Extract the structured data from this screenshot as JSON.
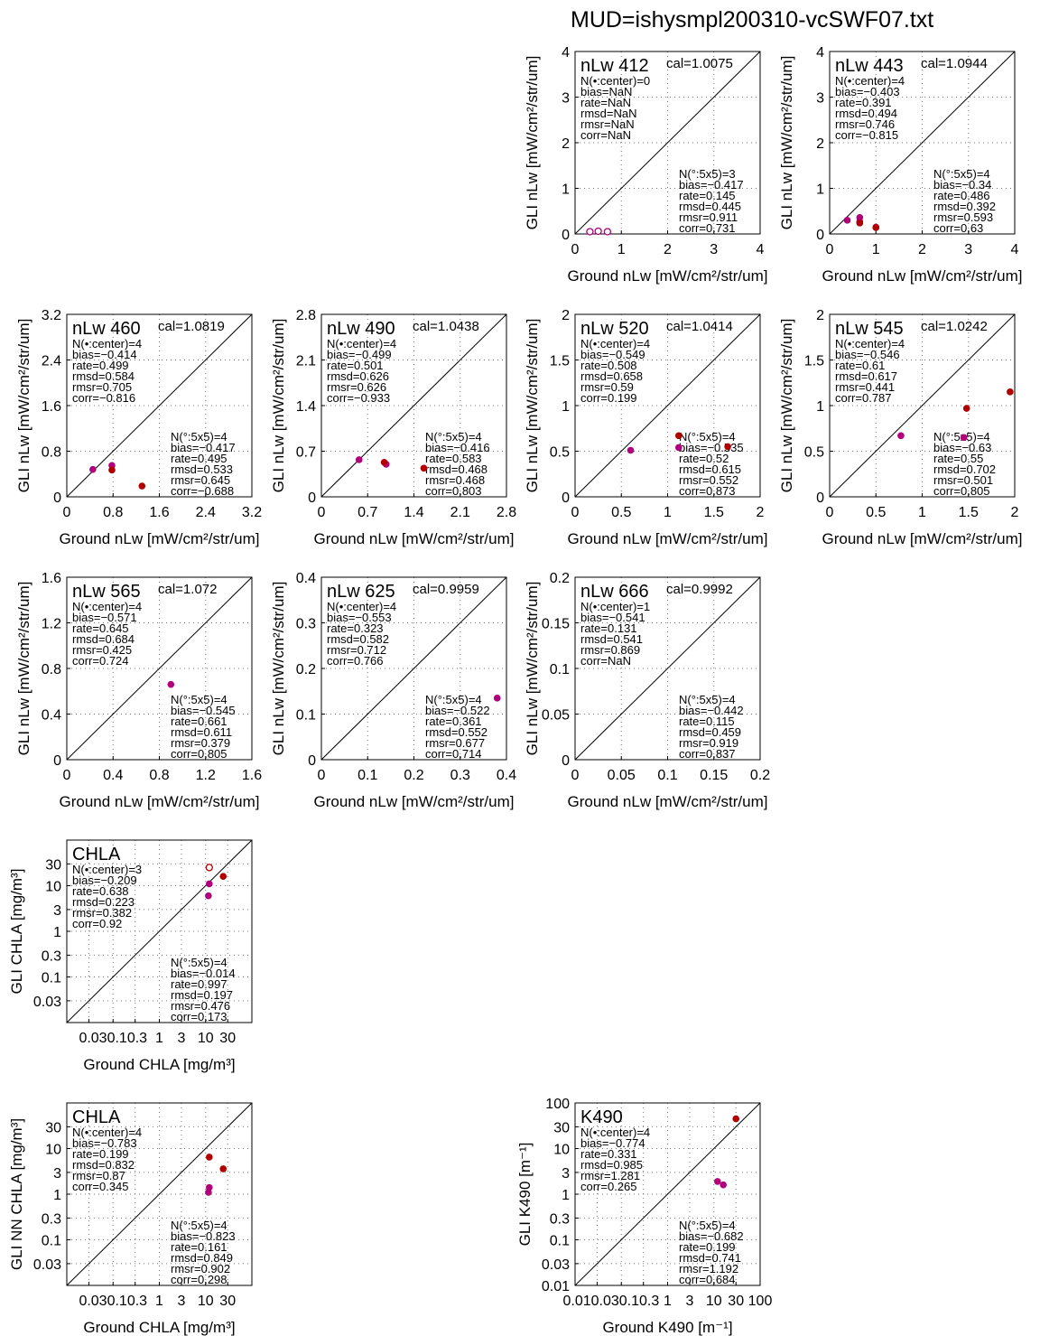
{
  "page_title": "MUD=ishysmpl200310-vcSWF07.txt",
  "colors": {
    "center_point": "#b00000",
    "neighbor_point": "#b0007a",
    "axis": "#000000",
    "grid": "#777777"
  },
  "chart_data": [
    {
      "type": "scatter",
      "panel_label": "nLw 412",
      "cal": "cal=1.0075",
      "xlabel": "Ground nLw [mW/cm²/str/um]",
      "ylabel": "GLI nLw [mW/cm²/str/um]",
      "scale": "linear",
      "xlim": [
        0,
        4
      ],
      "ylim": [
        0,
        4
      ],
      "ticks": [
        0,
        1,
        2,
        3,
        4
      ],
      "tick_labels": [
        "0",
        "1",
        "2",
        "3",
        "4"
      ],
      "grid": true,
      "stats_center": [
        "N(•:center)=0",
        "bias=NaN",
        "rate=NaN",
        "rmsd=NaN",
        "rmsr=NaN",
        "corr=NaN"
      ],
      "stats_5x5": [
        "N(°:5x5)=3",
        "bias=−0.417",
        "rate=0.145",
        "rmsd=0.445",
        "rmsr=0.911",
        "corr=0.731"
      ],
      "series": [
        {
          "name": "5x5 (open)",
          "points": [
            [
              0.32,
              0.05
            ],
            [
              0.5,
              0.06
            ],
            [
              0.7,
              0.05
            ]
          ],
          "style": "open",
          "color": "#b0007a"
        }
      ]
    },
    {
      "type": "scatter",
      "panel_label": "nLw 443",
      "cal": "cal=1.0944",
      "xlabel": "Ground nLw [mW/cm²/str/um]",
      "ylabel": "GLI nLw [mW/cm²/str/um]",
      "scale": "linear",
      "xlim": [
        0,
        4
      ],
      "ylim": [
        0,
        4
      ],
      "ticks": [
        0,
        1,
        2,
        3,
        4
      ],
      "tick_labels": [
        "0",
        "1",
        "2",
        "3",
        "4"
      ],
      "grid": true,
      "stats_center": [
        "N(•:center)=4",
        "bias=−0.403",
        "rate=0.391",
        "rmsd=0.494",
        "rmsr=0.746",
        "corr=−0.815"
      ],
      "stats_5x5": [
        "N(°:5x5)=4",
        "bias=−0.34",
        "rate=0.486",
        "rmsd=0.392",
        "rmsr=0.593",
        "corr=0.63"
      ],
      "series": [
        {
          "points": [
            [
              0.38,
              0.3
            ],
            [
              0.65,
              0.36
            ],
            [
              0.65,
              0.27
            ],
            [
              1.0,
              0.15
            ]
          ],
          "style": "filled",
          "color": "#b0007a"
        },
        {
          "points": [
            [
              0.65,
              0.24
            ],
            [
              1.0,
              0.14
            ]
          ],
          "style": "filled",
          "color": "#b00000"
        }
      ]
    },
    {
      "type": "scatter",
      "panel_label": "nLw 460",
      "cal": "cal=1.0819",
      "xlabel": "Ground nLw [mW/cm²/str/um]",
      "ylabel": "GLI nLw [mW/cm²/str/um]",
      "scale": "linear",
      "xlim": [
        0,
        3.2
      ],
      "ylim": [
        0,
        3.2
      ],
      "ticks": [
        0,
        0.8,
        1.6,
        2.4,
        3.2
      ],
      "tick_labels": [
        "0",
        "0.8",
        "1.6",
        "2.4",
        "3.2"
      ],
      "grid": true,
      "stats_center": [
        "N(•:center)=4",
        "bias=−0.414",
        "rate=0.499",
        "rmsd=0.584",
        "rmsr=0.705",
        "corr=−0.816"
      ],
      "stats_5x5": [
        "N(°:5x5)=4",
        "bias=−0.417",
        "rate=0.495",
        "rmsd=0.533",
        "rmsr=0.645",
        "corr=−0.688"
      ],
      "series": [
        {
          "points": [
            [
              0.45,
              0.48
            ],
            [
              0.78,
              0.55
            ]
          ],
          "style": "filled",
          "color": "#b0007a"
        },
        {
          "points": [
            [
              0.78,
              0.47
            ],
            [
              1.3,
              0.19
            ]
          ],
          "style": "filled",
          "color": "#b00000"
        }
      ]
    },
    {
      "type": "scatter",
      "panel_label": "nLw 490",
      "cal": "cal=1.0438",
      "xlabel": "Ground nLw [mW/cm²/str/um]",
      "ylabel": "GLI nLw [mW/cm²/str/um]",
      "scale": "linear",
      "xlim": [
        0,
        2.8
      ],
      "ylim": [
        0,
        2.8
      ],
      "ticks": [
        0,
        0.7,
        1.4,
        2.1,
        2.8
      ],
      "tick_labels": [
        "0",
        "0.7",
        "1.4",
        "2.1",
        "2.8"
      ],
      "grid": true,
      "stats_center": [
        "N(•:center)=4",
        "bias=−0.499",
        "rate=0.501",
        "rmsd=0.626",
        "rmsr=0.626",
        "corr=−0.933"
      ],
      "stats_5x5": [
        "N(°:5x5)=4",
        "bias=−0.416",
        "rate=0.583",
        "rmsd=0.468",
        "rmsr=0.468",
        "corr=0.803"
      ],
      "series": [
        {
          "points": [
            [
              0.57,
              0.57
            ],
            [
              0.98,
              0.5
            ]
          ],
          "style": "filled",
          "color": "#b0007a"
        },
        {
          "points": [
            [
              0.95,
              0.53
            ],
            [
              1.55,
              0.44
            ]
          ],
          "style": "filled",
          "color": "#b00000"
        }
      ]
    },
    {
      "type": "scatter",
      "panel_label": "nLw 520",
      "cal": "cal=1.0414",
      "xlabel": "Ground nLw [mW/cm²/str/um]",
      "ylabel": "GLI nLw [mW/cm²/str/um]",
      "scale": "linear",
      "xlim": [
        0,
        2
      ],
      "ylim": [
        0,
        2
      ],
      "ticks": [
        0,
        0.5,
        1,
        1.5,
        2
      ],
      "tick_labels": [
        "0",
        "0.5",
        "1",
        "1.5",
        "2"
      ],
      "grid": true,
      "stats_center": [
        "N(•:center)=4",
        "bias=−0.549",
        "rate=0.508",
        "rmsd=0.658",
        "rmsr=0.59",
        "corr=0.199"
      ],
      "stats_5x5": [
        "N(°:5x5)=4",
        "bias=−0.535",
        "rate=0.52",
        "rmsd=0.615",
        "rmsr=0.552",
        "corr=0.873"
      ],
      "series": [
        {
          "points": [
            [
              0.6,
              0.51
            ],
            [
              1.12,
              0.54
            ]
          ],
          "style": "filled",
          "color": "#b0007a"
        },
        {
          "points": [
            [
              1.12,
              0.67
            ],
            [
              1.65,
              0.55
            ]
          ],
          "style": "filled",
          "color": "#b00000"
        }
      ]
    },
    {
      "type": "scatter",
      "panel_label": "nLw 545",
      "cal": "cal=1.0242",
      "xlabel": "Ground nLw [mW/cm²/str/um]",
      "ylabel": "GLI nLw [mW/cm²/str/um]",
      "scale": "linear",
      "xlim": [
        0,
        2
      ],
      "ylim": [
        0,
        2
      ],
      "ticks": [
        0,
        0.5,
        1,
        1.5,
        2
      ],
      "tick_labels": [
        "0",
        "0.5",
        "1",
        "1.5",
        "2"
      ],
      "grid": true,
      "stats_center": [
        "N(•:center)=4",
        "bias=−0.546",
        "rate=0.61",
        "rmsd=0.617",
        "rmsr=0.441",
        "corr=0.787"
      ],
      "stats_5x5": [
        "N(°:5x5)=4",
        "bias=−0.63",
        "rate=0.55",
        "rmsd=0.702",
        "rmsr=0.501",
        "corr=0.805"
      ],
      "series": [
        {
          "points": [
            [
              0.77,
              0.67
            ],
            [
              1.45,
              0.65
            ]
          ],
          "style": "filled",
          "color": "#b0007a"
        },
        {
          "points": [
            [
              1.48,
              0.97
            ],
            [
              1.95,
              1.15
            ]
          ],
          "style": "filled",
          "color": "#b00000"
        }
      ]
    },
    {
      "type": "scatter",
      "panel_label": "nLw 565",
      "cal": "cal=1.072",
      "xlabel": "Ground nLw [mW/cm²/str/um]",
      "ylabel": "GLI nLw [mW/cm²/str/um]",
      "scale": "linear",
      "xlim": [
        0,
        1.6
      ],
      "ylim": [
        0,
        1.6
      ],
      "ticks": [
        0,
        0.4,
        0.8,
        1.2,
        1.6
      ],
      "tick_labels": [
        "0",
        "0.4",
        "0.8",
        "1.2",
        "1.6"
      ],
      "grid": true,
      "stats_center": [
        "N(•:center)=4",
        "bias=−0.571",
        "rate=0.645",
        "rmsd=0.684",
        "rmsr=0.425",
        "corr=0.724"
      ],
      "stats_5x5": [
        "N(°:5x5)=4",
        "bias=−0.545",
        "rate=0.661",
        "rmsd=0.611",
        "rmsr=0.379",
        "corr=0.805"
      ],
      "series": [
        {
          "points": [
            [
              0.9,
              0.66
            ]
          ],
          "style": "filled",
          "color": "#b0007a"
        }
      ]
    },
    {
      "type": "scatter",
      "panel_label": "nLw 625",
      "cal": "cal=0.9959",
      "xlabel": "Ground nLw [mW/cm²/str/um]",
      "ylabel": "GLI nLw [mW/cm²/str/um]",
      "scale": "linear",
      "xlim": [
        0,
        0.4
      ],
      "ylim": [
        0,
        0.4
      ],
      "ticks": [
        0,
        0.1,
        0.2,
        0.3,
        0.4
      ],
      "tick_labels": [
        "0",
        "0.1",
        "0.2",
        "0.3",
        "0.4"
      ],
      "grid": true,
      "stats_center": [
        "N(•:center)=4",
        "bias=−0.553",
        "rate=0.323",
        "rmsd=0.582",
        "rmsr=0.712",
        "corr=0.766"
      ],
      "stats_5x5": [
        "N(°:5x5)=4",
        "bias=−0.522",
        "rate=0.361",
        "rmsd=0.552",
        "rmsr=0.677",
        "corr=0.714"
      ],
      "series": [
        {
          "points": [
            [
              0.38,
              0.135
            ]
          ],
          "style": "filled",
          "color": "#b0007a"
        }
      ]
    },
    {
      "type": "scatter",
      "panel_label": "nLw 666",
      "cal": "cal=0.9992",
      "xlabel": "Ground nLw [mW/cm²/str/um]",
      "ylabel": "GLI nLw [mW/cm²/str/um]",
      "scale": "linear",
      "xlim": [
        0,
        0.2
      ],
      "ylim": [
        0,
        0.2
      ],
      "ticks": [
        0,
        0.05,
        0.1,
        0.15,
        0.2
      ],
      "tick_labels": [
        "0",
        "0.05",
        "0.1",
        "0.15",
        "0.2"
      ],
      "grid": true,
      "stats_center": [
        "N(•:center)=1",
        "bias=−0.541",
        "rate=0.131",
        "rmsd=0.541",
        "rmsr=0.869",
        "corr=NaN"
      ],
      "stats_5x5": [
        "N(°:5x5)=4",
        "bias=−0.442",
        "rate=0.115",
        "rmsd=0.459",
        "rmsr=0.919",
        "corr=0.837"
      ],
      "series": []
    },
    {
      "type": "scatter",
      "panel_label": "CHLA",
      "cal": "",
      "xlabel": "Ground CHLA [mg/m³]",
      "ylabel": "GLI CHLA [mg/m³]",
      "scale": "log",
      "xlim": [
        0.01,
        100
      ],
      "ylim": [
        0.01,
        100
      ],
      "ticks": [
        0.03,
        0.1,
        0.3,
        1,
        3,
        10,
        30
      ],
      "tick_labels": [
        "0.03",
        "0.1",
        "0.3",
        "1",
        "3",
        "10",
        "30"
      ],
      "xtick_labels": [
        "0.030.10.3",
        "1",
        "3",
        "10",
        "30"
      ],
      "grid": true,
      "stats_center": [
        "N(•:center)=3",
        "bias=−0.209",
        "rate=0.638",
        "rmsd=0.223",
        "rmsr=0.382",
        "corr=0.92"
      ],
      "stats_5x5": [
        "N(°:5x5)=4",
        "bias=−0.014",
        "rate=0.997",
        "rmsd=0.197",
        "rmsr=0.476",
        "corr=0.173"
      ],
      "series": [
        {
          "points": [
            [
              12,
              25
            ]
          ],
          "style": "open",
          "color": "#b00000"
        },
        {
          "points": [
            [
              24,
              16
            ]
          ],
          "style": "filled",
          "color": "#b00000"
        },
        {
          "points": [
            [
              12,
              11
            ],
            [
              11.5,
              6
            ]
          ],
          "style": "filled",
          "color": "#b0007a"
        }
      ]
    },
    {
      "type": "scatter",
      "panel_label": "CHLA",
      "cal": "",
      "xlabel": "Ground CHLA [mg/m³]",
      "ylabel": "GLI NN CHLA [mg/m³]",
      "scale": "log",
      "xlim": [
        0.01,
        100
      ],
      "ylim": [
        0.01,
        100
      ],
      "ticks": [
        0.03,
        0.1,
        0.3,
        1,
        3,
        10,
        30
      ],
      "tick_labels": [
        "0.03",
        "0.1",
        "0.3",
        "1",
        "3",
        "10",
        "30"
      ],
      "xtick_labels": [
        "0.030.10.3",
        "1",
        "3",
        "10",
        "30"
      ],
      "grid": true,
      "stats_center": [
        "N(•:center)=4",
        "bias=−0.783",
        "rate=0.199",
        "rmsd=0.832",
        "rmsr=0.87",
        "corr=0.345"
      ],
      "stats_5x5": [
        "N(°:5x5)=4",
        "bias=−0.823",
        "rate=0.161",
        "rmsd=0.849",
        "rmsr=0.902",
        "corr=0.298"
      ],
      "series": [
        {
          "points": [
            [
              12,
              6.5
            ],
            [
              24,
              3.6
            ]
          ],
          "style": "filled",
          "color": "#b00000"
        },
        {
          "points": [
            [
              12,
              1.4
            ],
            [
              11.5,
              1.1
            ]
          ],
          "style": "filled",
          "color": "#b0007a"
        }
      ]
    },
    {
      "type": "scatter",
      "panel_label": "K490",
      "cal": "",
      "xlabel": "Ground K490 [m⁻¹]",
      "ylabel": "GLI K490 [m⁻¹]",
      "scale": "log",
      "xlim": [
        0.01,
        100
      ],
      "ylim": [
        0.01,
        100
      ],
      "ticks": [
        0.01,
        0.03,
        0.1,
        0.3,
        1,
        3,
        10,
        30,
        100
      ],
      "tick_labels": [
        "0.01",
        "0.03",
        "0.1",
        "0.3",
        "1",
        "3",
        "10",
        "30",
        "100"
      ],
      "xtick_labels": [
        "0.010.030.10.3",
        "1",
        "3",
        "10",
        "30",
        "100"
      ],
      "grid": true,
      "stats_center": [
        "N(•:center)=4",
        "bias=−0.774",
        "rate=0.331",
        "rmsd=0.985",
        "rmsr=1.281",
        "corr=0.265"
      ],
      "stats_5x5": [
        "N(°:5x5)=4",
        "bias=−0.682",
        "rate=0.199",
        "rmsd=0.741",
        "rmsr=1.192",
        "corr=0.684"
      ],
      "series": [
        {
          "points": [
            [
              30,
              45
            ]
          ],
          "style": "filled",
          "color": "#b00000"
        },
        {
          "points": [
            [
              12,
              1.9
            ],
            [
              16,
              1.6
            ]
          ],
          "style": "filled",
          "color": "#b0007a"
        }
      ]
    }
  ]
}
